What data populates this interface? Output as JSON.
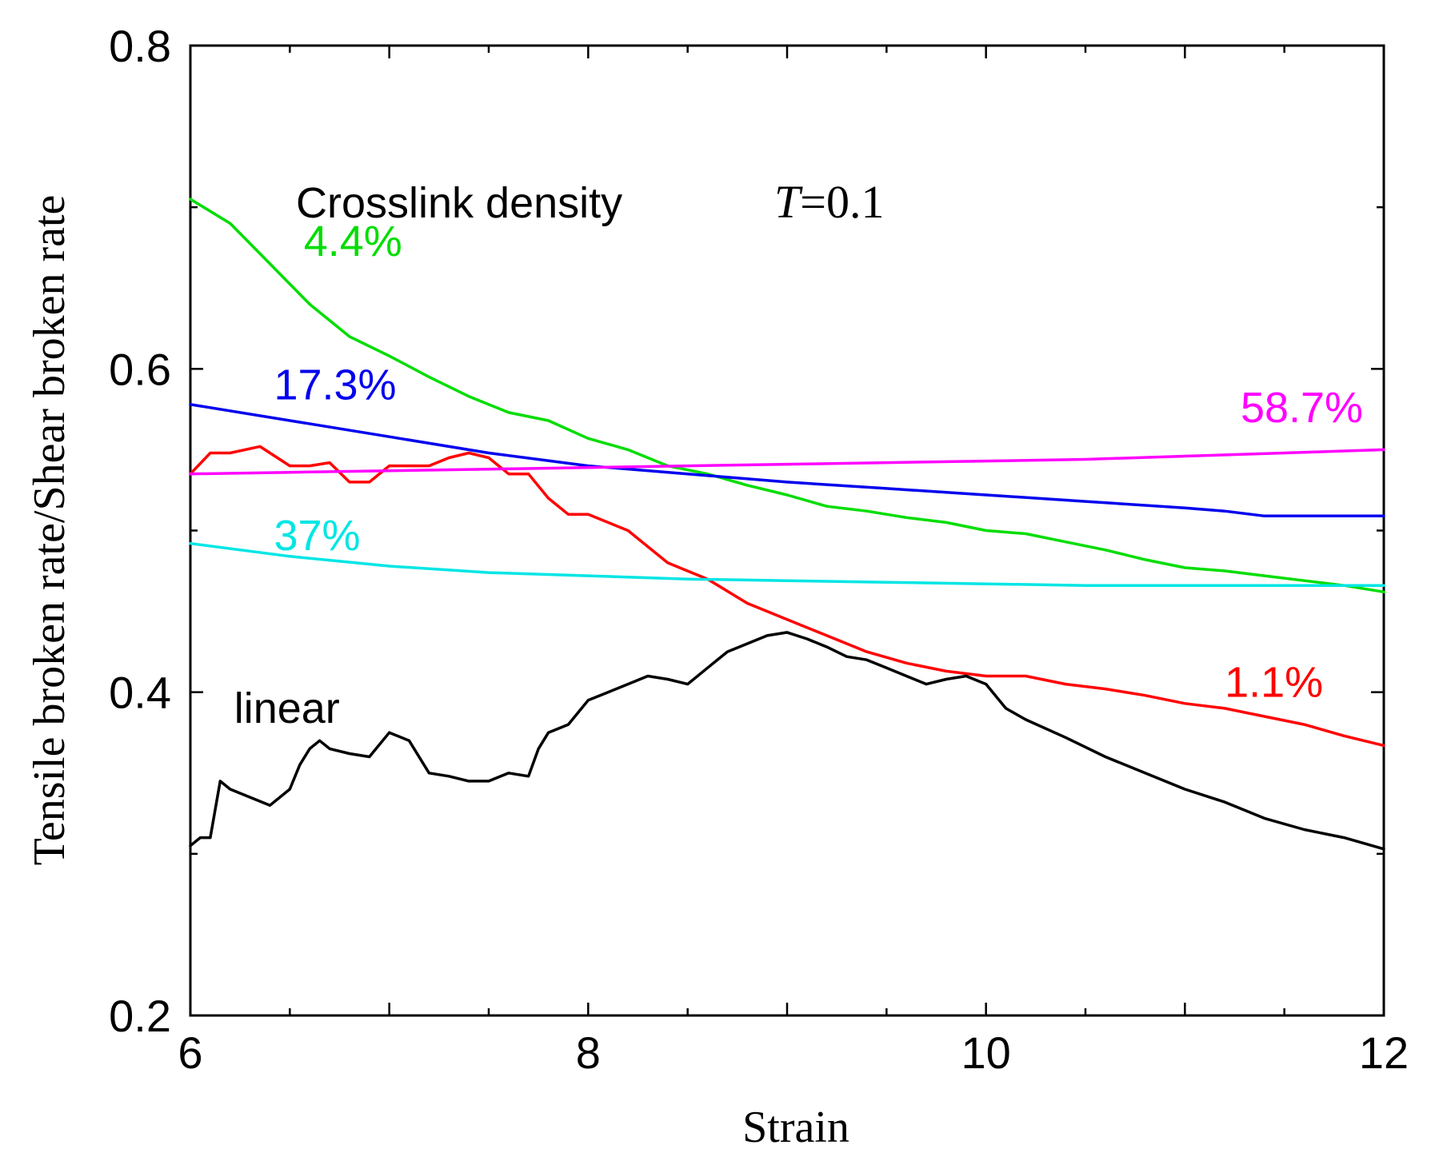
{
  "chart_data": {
    "type": "line",
    "xlabel": "Strain",
    "ylabel": "Tensile broken rate/Shear broken rate",
    "xlim": [
      6,
      12
    ],
    "ylim": [
      0.2,
      0.8
    ],
    "xticks": [
      6,
      8,
      10,
      12
    ],
    "xtick_labels": [
      "6",
      "8",
      "10",
      "12"
    ],
    "yticks": [
      0.2,
      0.4,
      0.6,
      0.8
    ],
    "ytick_labels": [
      "0.2",
      "0.4",
      "0.6",
      "0.8"
    ],
    "grid": false,
    "annotations": {
      "legend_title": "Crosslink density",
      "temperature_symbol": "T",
      "temperature_value": "=0.1",
      "linear_label": "linear"
    },
    "series": [
      {
        "name": "1.1%",
        "color": "#ff0000",
        "x": [
          6.0,
          6.1,
          6.2,
          6.35,
          6.5,
          6.6,
          6.7,
          6.8,
          6.9,
          7.0,
          7.1,
          7.2,
          7.3,
          7.4,
          7.5,
          7.6,
          7.7,
          7.8,
          7.9,
          8.0,
          8.2,
          8.4,
          8.6,
          8.8,
          9.0,
          9.2,
          9.4,
          9.6,
          9.8,
          10.0,
          10.2,
          10.4,
          10.6,
          10.8,
          11.0,
          11.2,
          11.4,
          11.6,
          11.8,
          12.0
        ],
        "y": [
          0.535,
          0.548,
          0.548,
          0.552,
          0.54,
          0.54,
          0.542,
          0.53,
          0.53,
          0.54,
          0.54,
          0.54,
          0.545,
          0.548,
          0.545,
          0.535,
          0.535,
          0.52,
          0.51,
          0.51,
          0.5,
          0.48,
          0.47,
          0.455,
          0.445,
          0.435,
          0.425,
          0.418,
          0.413,
          0.41,
          0.41,
          0.405,
          0.402,
          0.398,
          0.393,
          0.39,
          0.385,
          0.38,
          0.373,
          0.367
        ]
      },
      {
        "name": "4.4%",
        "color": "#00dd00",
        "x": [
          6.0,
          6.2,
          6.4,
          6.6,
          6.8,
          7.0,
          7.2,
          7.4,
          7.6,
          7.8,
          8.0,
          8.2,
          8.4,
          8.6,
          8.8,
          9.0,
          9.2,
          9.4,
          9.6,
          9.8,
          10.0,
          10.2,
          10.4,
          10.6,
          10.8,
          11.0,
          11.2,
          11.4,
          11.6,
          11.8,
          12.0
        ],
        "y": [
          0.705,
          0.69,
          0.665,
          0.64,
          0.62,
          0.608,
          0.595,
          0.583,
          0.573,
          0.568,
          0.557,
          0.55,
          0.54,
          0.535,
          0.528,
          0.522,
          0.515,
          0.512,
          0.508,
          0.505,
          0.5,
          0.498,
          0.493,
          0.488,
          0.482,
          0.477,
          0.475,
          0.472,
          0.469,
          0.466,
          0.462
        ]
      },
      {
        "name": "17.3%",
        "color": "#0000ee",
        "x": [
          6.0,
          6.5,
          7.0,
          7.5,
          8.0,
          8.5,
          9.0,
          9.5,
          10.0,
          10.5,
          11.0,
          11.2,
          11.4,
          11.6,
          11.8,
          12.0
        ],
        "y": [
          0.578,
          0.568,
          0.558,
          0.548,
          0.54,
          0.535,
          0.53,
          0.526,
          0.522,
          0.518,
          0.514,
          0.512,
          0.509,
          0.509,
          0.509,
          0.509
        ]
      },
      {
        "name": "37%",
        "color": "#00e5e5",
        "x": [
          6.0,
          6.5,
          7.0,
          7.5,
          8.0,
          8.5,
          9.0,
          9.5,
          10.0,
          10.5,
          11.0,
          11.5,
          12.0
        ],
        "y": [
          0.492,
          0.484,
          0.478,
          0.474,
          0.472,
          0.47,
          0.469,
          0.468,
          0.467,
          0.466,
          0.466,
          0.466,
          0.466
        ]
      },
      {
        "name": "58.7%",
        "color": "#ff00ff",
        "x": [
          6.0,
          6.5,
          7.0,
          7.5,
          8.0,
          8.5,
          9.0,
          9.5,
          10.0,
          10.5,
          11.0,
          11.5,
          12.0
        ],
        "y": [
          0.535,
          0.536,
          0.537,
          0.538,
          0.539,
          0.54,
          0.541,
          0.542,
          0.543,
          0.544,
          0.546,
          0.548,
          0.55
        ]
      },
      {
        "name": "",
        "color": "#000000",
        "x": [
          6.0,
          6.05,
          6.1,
          6.15,
          6.2,
          6.3,
          6.4,
          6.5,
          6.55,
          6.6,
          6.65,
          6.7,
          6.8,
          6.9,
          7.0,
          7.1,
          7.2,
          7.3,
          7.4,
          7.5,
          7.6,
          7.7,
          7.75,
          7.8,
          7.9,
          8.0,
          8.1,
          8.2,
          8.3,
          8.4,
          8.5,
          8.6,
          8.7,
          8.8,
          8.9,
          9.0,
          9.1,
          9.2,
          9.3,
          9.4,
          9.5,
          9.6,
          9.7,
          9.8,
          9.9,
          10.0,
          10.1,
          10.2,
          10.4,
          10.6,
          10.8,
          11.0,
          11.2,
          11.4,
          11.6,
          11.8,
          12.0
        ],
        "y": [
          0.305,
          0.31,
          0.31,
          0.345,
          0.34,
          0.335,
          0.33,
          0.34,
          0.355,
          0.365,
          0.37,
          0.365,
          0.362,
          0.36,
          0.375,
          0.37,
          0.35,
          0.348,
          0.345,
          0.345,
          0.35,
          0.348,
          0.365,
          0.375,
          0.38,
          0.395,
          0.4,
          0.405,
          0.41,
          0.408,
          0.405,
          0.415,
          0.425,
          0.43,
          0.435,
          0.437,
          0.433,
          0.428,
          0.422,
          0.42,
          0.415,
          0.41,
          0.405,
          0.408,
          0.41,
          0.405,
          0.39,
          0.383,
          0.372,
          0.36,
          0.35,
          0.34,
          0.332,
          0.322,
          0.315,
          0.31,
          0.303
        ]
      }
    ],
    "series_labels": [
      {
        "text": "4.4%",
        "color": "#00dd00",
        "x": 6.57,
        "y": 0.67
      },
      {
        "text": "17.3%",
        "color": "#0000ee",
        "x": 6.42,
        "y": 0.581
      },
      {
        "text": "58.7%",
        "color": "#ff00ff",
        "x": 11.28,
        "y": 0.567
      },
      {
        "text": "37%",
        "color": "#00e5e5",
        "x": 6.42,
        "y": 0.488
      },
      {
        "text": "1.1%",
        "color": "#ff0000",
        "x": 11.2,
        "y": 0.397
      },
      {
        "text": "linear",
        "color": "#000000",
        "x": 6.22,
        "y": 0.381
      }
    ]
  }
}
